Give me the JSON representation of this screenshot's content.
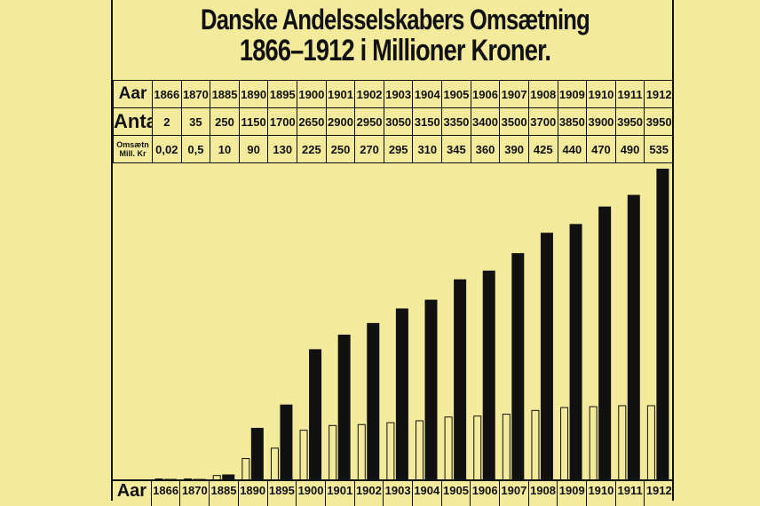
{
  "title_line1": "Danske Andelsselskabers Omsætning",
  "title_line2": "1866–1912 i Millioner Kroner.",
  "row_labels": {
    "year": "Aar",
    "count": "Antal",
    "turnover_line1": "Omsætn",
    "turnover_line2": "Mill. Kr"
  },
  "bottom_label": "Aar",
  "chart_data": {
    "type": "bar",
    "title": "Danske Andelsselskabers Omsætning 1866–1912 i Millioner Kroner.",
    "categories": [
      "1866",
      "1870",
      "1885",
      "1890",
      "1895",
      "1900",
      "1901",
      "1902",
      "1903",
      "1904",
      "1905",
      "1906",
      "1907",
      "1908",
      "1909",
      "1910",
      "1911",
      "1912"
    ],
    "series": [
      {
        "name": "Omsætn Mill. Kr",
        "values": [
          0.02,
          0.5,
          10,
          90,
          130,
          225,
          250,
          270,
          295,
          310,
          345,
          360,
          390,
          425,
          440,
          470,
          490,
          535
        ],
        "labels": [
          "0,02",
          "0,5",
          "10",
          "90",
          "130",
          "225",
          "250",
          "270",
          "295",
          "310",
          "345",
          "360",
          "390",
          "425",
          "440",
          "470",
          "490",
          "535"
        ],
        "color": "#111111",
        "style": "solid"
      },
      {
        "name": "Antal",
        "values": [
          2,
          35,
          250,
          1150,
          1700,
          2650,
          2900,
          2950,
          3050,
          3150,
          3350,
          3400,
          3500,
          3700,
          3850,
          3900,
          3950,
          3950
        ],
        "color": "#111111",
        "style": "outline"
      }
    ],
    "grid": false
  }
}
